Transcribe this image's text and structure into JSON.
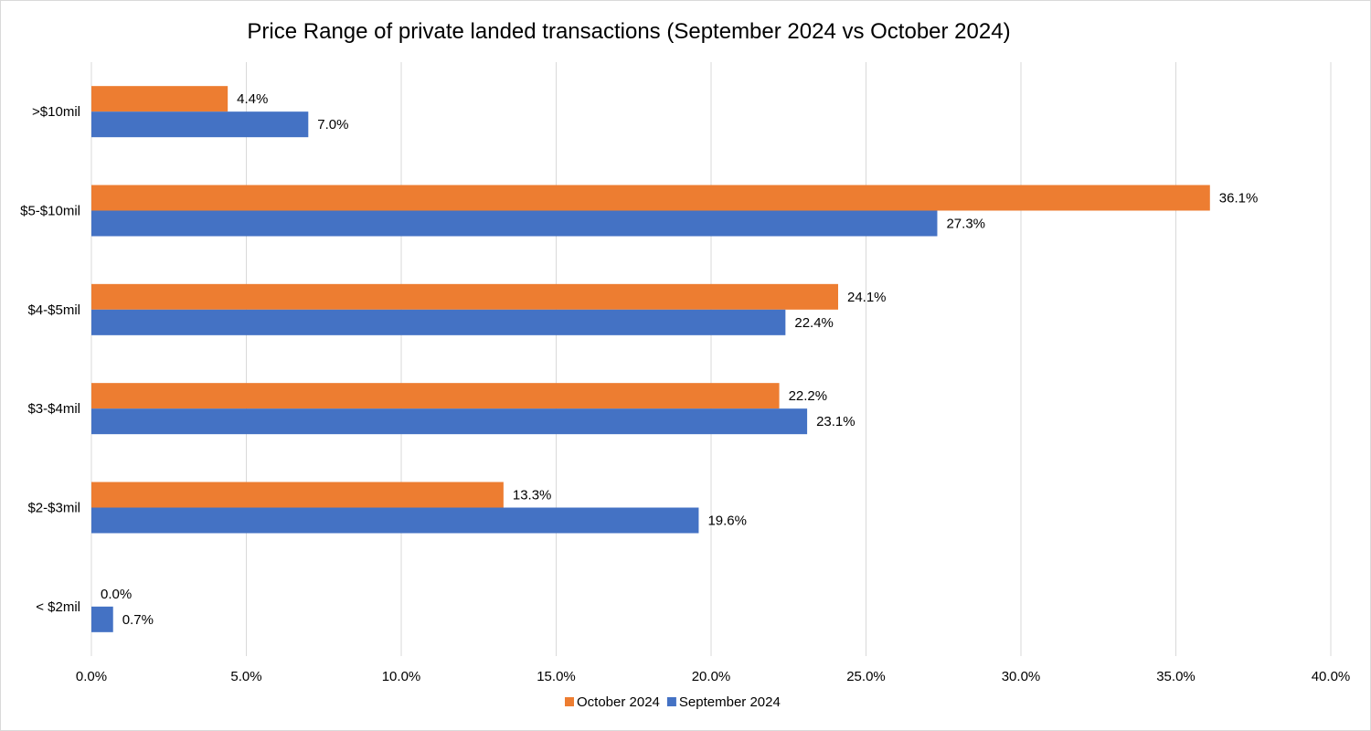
{
  "chart_data": {
    "type": "bar",
    "orientation": "horizontal",
    "title": "Price Range of private landed transactions (September 2024 vs October 2024)",
    "xlabel": "",
    "ylabel": "",
    "categories": [
      ">$10mil",
      "$5-$10mil",
      "$4-$5mil",
      "$3-$4mil",
      "$2-$3mil",
      "< $2mil"
    ],
    "series": [
      {
        "name": "October 2024",
        "color": "#ED7D31",
        "values": [
          4.4,
          36.1,
          24.1,
          22.2,
          13.3,
          0.0
        ],
        "labels": [
          "4.4%",
          "36.1%",
          "24.1%",
          "22.2%",
          "13.3%",
          "0.0%"
        ]
      },
      {
        "name": "September 2024",
        "color": "#4472C4",
        "values": [
          7.0,
          27.3,
          22.4,
          23.1,
          19.6,
          0.7
        ],
        "labels": [
          "7.0%",
          "27.3%",
          "22.4%",
          "23.1%",
          "19.6%",
          "0.7%"
        ]
      }
    ],
    "xlim": [
      0,
      40
    ],
    "xticks": [
      0,
      5,
      10,
      15,
      20,
      25,
      30,
      35,
      40
    ],
    "xtick_labels": [
      "0.0%",
      "5.0%",
      "10.0%",
      "15.0%",
      "20.0%",
      "25.0%",
      "30.0%",
      "35.0%",
      "40.0%"
    ],
    "grid": "vertical",
    "legend_position": "bottom",
    "gridline_color": "#D9D9D9"
  }
}
